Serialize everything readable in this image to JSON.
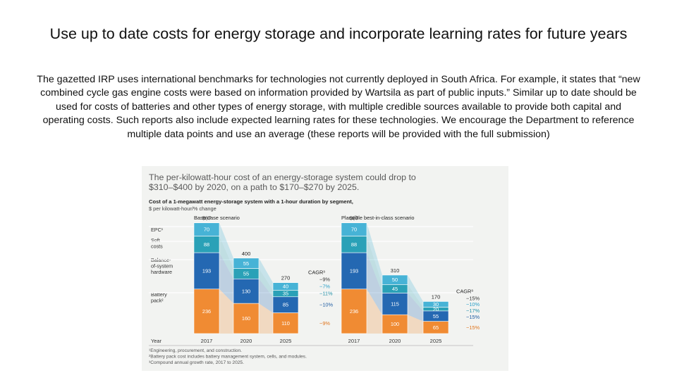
{
  "slide": {
    "title": "Use up to date costs for energy storage and incorporate learning rates for future years",
    "body": "The gazetted IRP uses international benchmarks for technologies not currently deployed in South Africa. For example, it states that “new combined cycle gas engine costs were based on information provided by Wartsila as part of public inputs.” Similar up to date should be used for costs of batteries and other types of energy storage, with multiple credible sources available to provide both capital and operating costs. Such reports also include expected learning rates for these technologies. We encourage the Department to reference multiple data points and use an average (these reports will be provided with the full submission)"
  },
  "chart_data": {
    "type": "bar",
    "stacked": true,
    "headline": [
      "The per-kilowatt-hour cost of an energy-storage system could drop to",
      "$310–$400 by 2020, on a path to $170–$270 by 2025."
    ],
    "subtitle": "Cost of a 1-megawatt energy-storage system with a 1-hour duration by segment,",
    "unit_label": "$ per kilowatt-hour/% change",
    "row_labels": [
      {
        "id": "epc",
        "lines": [
          "EPC¹"
        ]
      },
      {
        "id": "soft",
        "lines": [
          "Soft",
          "costs"
        ]
      },
      {
        "id": "bos",
        "lines": [
          "Balance-",
          "of-system",
          "hardware"
        ]
      },
      {
        "id": "battery",
        "lines": [
          "Battery",
          "pack²"
        ]
      }
    ],
    "year_label": "Year",
    "cagr_label": "CAGR³",
    "segment_colors": {
      "battery": "#f08b33",
      "bos": "#2468b2",
      "soft": "#2aa1b7",
      "epc": "#47b3d6"
    },
    "scenarios": [
      {
        "name": "Base-case scenario",
        "years": [
          "2017",
          "2020",
          "2025"
        ],
        "totals": [
          "587",
          "400",
          "270"
        ],
        "segments": {
          "battery": [
            236,
            160,
            110
          ],
          "bos": [
            193,
            130,
            85
          ],
          "soft": [
            88,
            55,
            35
          ],
          "epc": [
            70,
            55,
            40
          ]
        },
        "cagr": {
          "total": "−9%",
          "epc": "−7%",
          "soft": "−11%",
          "bos": "−10%",
          "battery": "−9%"
        }
      },
      {
        "name": "Plausible best-in-class scenario",
        "years": [
          "2017",
          "2020",
          "2025"
        ],
        "totals": [
          "587",
          "310",
          "170"
        ],
        "segments": {
          "battery": [
            236,
            100,
            65
          ],
          "bos": [
            193,
            115,
            55
          ],
          "soft": [
            88,
            45,
            20
          ],
          "epc": [
            70,
            50,
            30
          ]
        },
        "cagr": {
          "total": "−15%",
          "epc": "−10%",
          "soft": "−17%",
          "bos": "−15%",
          "battery": "−15%"
        }
      }
    ],
    "footnotes": [
      "¹Engineering, procurement, and construction.",
      "²Battery pack cost includes battery management system, cells, and modules.",
      "³Compound annual growth rate, 2017 to 2025."
    ],
    "ylim": [
      0,
      600
    ]
  }
}
